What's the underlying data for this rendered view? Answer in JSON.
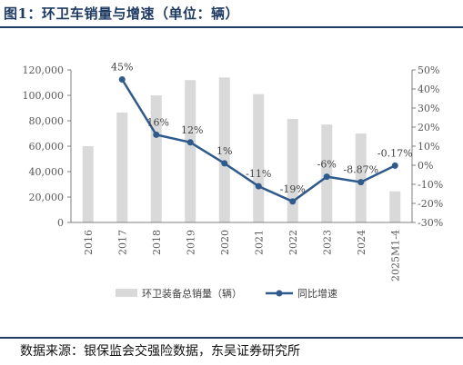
{
  "figure": {
    "title": "图1：环卫车销量与增速（单位：辆）",
    "source": "数据来源：银保监会交强险数据，东吴证券研究所"
  },
  "chart_data": {
    "type": "bar+line",
    "categories": [
      "2016",
      "2017",
      "2018",
      "2019",
      "2020",
      "2021",
      "2022",
      "2023",
      "2024",
      "2025M1-4"
    ],
    "series": [
      {
        "name": "环卫装备总销量（辆）",
        "type": "bar",
        "axis": "left",
        "color": "#d9d9d9",
        "values": [
          60000,
          86500,
          100000,
          112000,
          114000,
          101000,
          81500,
          77000,
          70000,
          24500
        ]
      },
      {
        "name": "同比增速",
        "type": "line",
        "axis": "right",
        "color": "#2f5a8c",
        "values": [
          null,
          45,
          16,
          12,
          1,
          -11,
          -19,
          -6,
          -8.87,
          -0.17
        ],
        "labels": [
          "",
          "45%",
          "16%",
          "12%",
          "1%",
          "-11%",
          "-19%",
          "-6%",
          "-8.87%",
          "-0.17%"
        ]
      }
    ],
    "left_axis": {
      "min": 0,
      "max": 120000,
      "step": 20000,
      "tick_labels": [
        "0",
        "20,000",
        "40,000",
        "60,000",
        "80,000",
        "100,000",
        "120,000"
      ]
    },
    "right_axis": {
      "min": -30,
      "max": 50,
      "step": 10,
      "tick_labels": [
        "-30%",
        "-20%",
        "-10%",
        "0%",
        "10%",
        "20%",
        "30%",
        "40%",
        "50%"
      ]
    },
    "legend_position": "bottom",
    "grid": false
  }
}
